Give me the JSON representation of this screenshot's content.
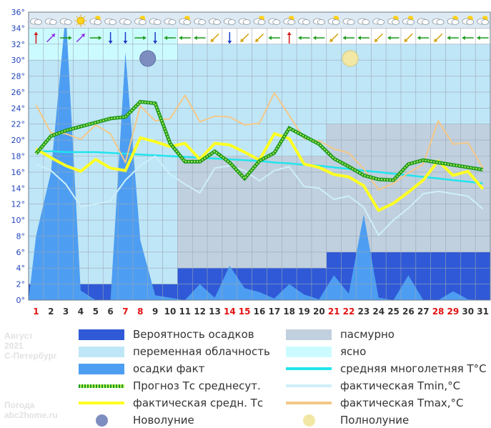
{
  "header": {
    "month": "Август",
    "year": "2021",
    "city": "С-Петербург"
  },
  "watermark": {
    "line1": "Погода",
    "line2": "abc2home.ru"
  },
  "colors": {
    "precip_prob": "#2f59d6",
    "cloudy_var": "#bfe6f6",
    "precip_fact": "#4d9ef2",
    "overcast": "#c1d0de",
    "clear": "#ccfbff",
    "climate_avg": "#22e4ee",
    "forecast_avg": "#1e9a1e",
    "tmin": "#cdeffa",
    "actual_avg": "#ffff22",
    "tmax": "#f4c888",
    "new_moon": "#7d8dc0",
    "full_moon": "#f2e7a4"
  },
  "legend": [
    {
      "key": "precip_prob",
      "label": "Вероятность осадков",
      "swatch": "box"
    },
    {
      "key": "overcast",
      "label": "пасмурно",
      "swatch": "box"
    },
    {
      "key": "cloudy_var",
      "label": "переменная облачность",
      "swatch": "box"
    },
    {
      "key": "clear",
      "label": "ясно",
      "swatch": "box"
    },
    {
      "key": "precip_fact",
      "label": "осадки факт",
      "swatch": "box"
    },
    {
      "key": "climate_avg",
      "label": "средняя многолетняя T°C",
      "swatch": "line"
    },
    {
      "key": "forecast_avg",
      "label": "Прогноз Тс среднесут.",
      "swatch": "dots"
    },
    {
      "key": "tmin",
      "label": "фактическая Tmin,°C",
      "swatch": "line"
    },
    {
      "key": "actual_avg",
      "label": "фактическая средн. Тс",
      "swatch": "line"
    },
    {
      "key": "tmax",
      "label": "фактическая Tmax,°C",
      "swatch": "line"
    },
    {
      "key": "new_moon",
      "label": "Новолуние",
      "swatch": "moon"
    },
    {
      "key": "full_moon",
      "label": "Полнолуние",
      "swatch": "moon"
    }
  ],
  "chart_data": {
    "type": "line",
    "x": [
      1,
      2,
      3,
      4,
      5,
      6,
      7,
      8,
      9,
      10,
      11,
      12,
      13,
      14,
      15,
      16,
      17,
      18,
      19,
      20,
      21,
      22,
      23,
      24,
      25,
      26,
      27,
      28,
      29,
      30,
      31
    ],
    "x_labels": [
      "1",
      "2",
      "3",
      "4",
      "5",
      "6",
      "7",
      "8",
      "9",
      "10",
      "11",
      "12",
      "13",
      "14",
      "15",
      "16",
      "17",
      "18",
      "19",
      "20",
      "21",
      "22",
      "23",
      "24",
      "25",
      "26",
      "27",
      "28",
      "29",
      "30",
      "31"
    ],
    "weekend_days": [
      1,
      7,
      8,
      14,
      15,
      21,
      22,
      28,
      29
    ],
    "y_ticks": [
      "0°",
      "2°",
      "4°",
      "6°",
      "8°",
      "10°",
      "12°",
      "14°",
      "16°",
      "18°",
      "20°",
      "22°",
      "24°",
      "26°",
      "28°",
      "30°",
      "32°",
      "34°",
      "36°"
    ],
    "ylim": [
      0,
      36
    ],
    "sky": [
      {
        "from": 1,
        "to": 10,
        "level": 34,
        "state": "clear"
      },
      {
        "from": 1,
        "to": 10,
        "level": 30,
        "state": "cloudy_var"
      },
      {
        "from": 11,
        "to": 20,
        "level": 32,
        "state": "cloudy_var"
      },
      {
        "from": 11,
        "to": 20,
        "level": 18,
        "state": "overcast"
      },
      {
        "from": 21,
        "to": 31,
        "level": 32,
        "state": "cloudy_var"
      },
      {
        "from": 21,
        "to": 31,
        "level": 22,
        "state": "overcast"
      }
    ],
    "precip_probability": [
      {
        "from": 1,
        "to": 10,
        "level": 2
      },
      {
        "from": 11,
        "to": 20,
        "level": 4
      },
      {
        "from": 21,
        "to": 31,
        "level": 6
      }
    ],
    "series": [
      {
        "key": "precip_fact",
        "name": "осадки факт",
        "values": [
          8,
          16,
          38,
          1.2,
          0,
          0,
          31,
          7.5,
          0.6,
          0.3,
          0,
          2,
          0.3,
          4.3,
          1.5,
          1,
          0.2,
          2,
          0.7,
          0.1,
          3.1,
          0.8,
          10.7,
          0.3,
          0,
          3.1,
          0,
          0,
          1.1,
          0.1,
          0
        ]
      },
      {
        "key": "climate_avg",
        "name": "средняя многолетняя T°C",
        "values": [
          18.6,
          18.6,
          18.5,
          18.5,
          18.5,
          18.4,
          18.3,
          18.2,
          18.1,
          18.0,
          17.9,
          17.8,
          17.7,
          17.6,
          17.5,
          17.4,
          17.2,
          17.1,
          16.9,
          16.8,
          16.6,
          16.4,
          16.2,
          16.0,
          15.8,
          15.6,
          15.4,
          15.2,
          15.0,
          14.8,
          14.6
        ]
      },
      {
        "key": "forecast_avg",
        "name": "Прогноз Тс среднесут.",
        "values": [
          18.3,
          20.5,
          21.2,
          21.7,
          22.2,
          22.7,
          22.9,
          24.8,
          24.6,
          19.6,
          17.3,
          17.3,
          18.6,
          17.2,
          15.2,
          17.4,
          18.4,
          21.5,
          20.5,
          19.5,
          17.7,
          16.7,
          15.6,
          15.1,
          15.0,
          17.0,
          17.5,
          17.2,
          16.9,
          16.6,
          16.3
        ]
      },
      {
        "key": "tmin",
        "name": "фактическая Tmin,°C",
        "values": [
          17.0,
          16.2,
          14.5,
          11.7,
          12.0,
          12.4,
          15.0,
          16.8,
          18.0,
          15.7,
          14.5,
          13.4,
          16.5,
          16.8,
          16.2,
          14.9,
          16.2,
          16.7,
          14.2,
          14.0,
          12.6,
          13.0,
          11.6,
          8.1,
          10.0,
          11.5,
          13.3,
          13.6,
          13.3,
          13.0,
          11.4
        ]
      },
      {
        "key": "actual_avg",
        "name": "фактическая средн. Тс",
        "values": [
          18.9,
          17.8,
          16.8,
          16.1,
          17.6,
          16.5,
          16.2,
          20.3,
          19.8,
          19.2,
          19.6,
          17.6,
          19.6,
          19.4,
          18.5,
          17.5,
          20.8,
          20.2,
          17.0,
          16.6,
          15.7,
          15.4,
          14.3,
          11.2,
          12.1,
          13.5,
          15.0,
          17.4,
          15.6,
          16.1,
          13.9
        ]
      },
      {
        "key": "tmax",
        "name": "фактическая Tmax,°C",
        "values": [
          24.4,
          20.9,
          20.8,
          20.1,
          21.9,
          20.8,
          17.2,
          24.3,
          22.4,
          22.7,
          25.6,
          22.3,
          23.0,
          22.9,
          21.9,
          22.1,
          25.9,
          23.1,
          20.2,
          19.9,
          18.9,
          18.4,
          16.4,
          13.8,
          14.6,
          15.9,
          17.0,
          22.4,
          19.5,
          19.7,
          16.5
        ]
      }
    ],
    "moons": [
      {
        "key": "new_moon",
        "day": 8.5,
        "temp": 30.2
      },
      {
        "key": "full_moon",
        "day": 22.1,
        "temp": 30.2
      }
    ],
    "weather_icons": [
      "cloudy",
      "cloudy",
      "cloudy",
      "sunny",
      "partly-sunny",
      "cloudy",
      "cloudy",
      "partly-sunny",
      "cloudy",
      "cloudy",
      "partly-sunny",
      "cloudy",
      "cloudy",
      "cloudy",
      "cloudy",
      "partly-sunny",
      "cloudy",
      "partly-sunny",
      "cloudy",
      "cloudy",
      "partly-sunny",
      "cloudy",
      "cloudy",
      "cloudy",
      "partly-sunny",
      "partly-sunny",
      "cloudy",
      "cloudy",
      "partly-sunny",
      "partly-sunny",
      "partly-sunny"
    ],
    "wind_dirs": [
      "N",
      "NE",
      "E",
      "NE",
      "E",
      "S",
      "S",
      "E",
      "S",
      "W",
      "W",
      "W",
      "SW",
      "S",
      "SW",
      "SW",
      "W",
      "N",
      "W",
      "W",
      "SW",
      "W",
      "W",
      "SW",
      "W",
      "SW",
      "W",
      "SW",
      "W",
      "W",
      "W"
    ],
    "grid": true
  }
}
